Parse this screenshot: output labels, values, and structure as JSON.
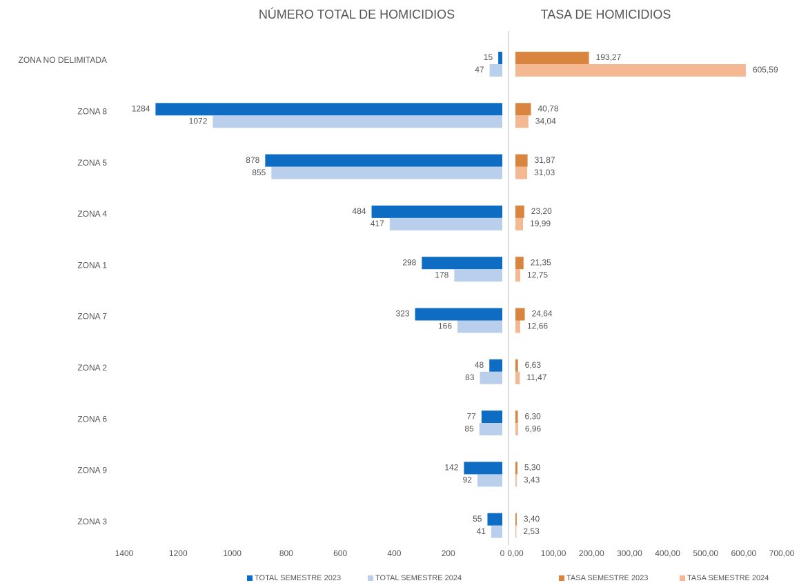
{
  "chart_data": [
    {
      "type": "bar",
      "orientation": "horizontal",
      "title": "NÚMERO TOTAL DE HOMICIDIOS",
      "categories": [
        "ZONA NO DELIMITADA",
        "ZONA 8",
        "ZONA 5",
        "ZONA 4",
        "ZONA 1",
        "ZONA 7",
        "ZONA 2",
        "ZONA 6",
        "ZONA 9",
        "ZONA 3"
      ],
      "series": [
        {
          "name": "TOTAL SEMESTRE 2023",
          "color": "#0e6cc3",
          "values": [
            15,
            1284,
            878,
            484,
            298,
            323,
            48,
            77,
            142,
            55
          ]
        },
        {
          "name": "TOTAL SEMESTRE 2024",
          "color": "#b9cfec",
          "values": [
            47,
            1072,
            855,
            417,
            178,
            166,
            83,
            85,
            92,
            41
          ]
        }
      ],
      "xlim": [
        1400,
        0
      ],
      "xticks": [
        1400,
        1200,
        1000,
        800,
        600,
        400,
        200,
        0
      ],
      "legend": "bottom"
    },
    {
      "type": "bar",
      "orientation": "horizontal",
      "title": "TASA DE HOMICIDIOS",
      "series": [
        {
          "name": "TASA SEMESTRE 2023",
          "color": "#d9843f",
          "values": [
            193.27,
            40.78,
            31.87,
            23.2,
            21.35,
            24.64,
            6.63,
            6.3,
            5.3,
            3.4
          ],
          "value_labels": [
            "193,27",
            "40,78",
            "31,87",
            "23,20",
            "21,35",
            "24,64",
            "6,63",
            "6,30",
            "5,30",
            "3,40"
          ]
        },
        {
          "name": "TASA SEMESTRE 2024",
          "color": "#f4b992",
          "values": [
            605.59,
            34.04,
            31.03,
            19.99,
            12.75,
            12.66,
            11.47,
            6.96,
            3.43,
            2.53
          ],
          "value_labels": [
            "605,59",
            "34,04",
            "31,03",
            "19,99",
            "12,75",
            "12,66",
            "11,47",
            "6,96",
            "3,43",
            "2,53"
          ]
        }
      ],
      "xlim": [
        0,
        700
      ],
      "xticks": [
        {
          "value": 0,
          "label": "0,00"
        },
        {
          "value": 100,
          "label": "100,00"
        },
        {
          "value": 200,
          "label": "200,00"
        },
        {
          "value": 300,
          "label": "300,00"
        },
        {
          "value": 400,
          "label": "400,00"
        },
        {
          "value": 500,
          "label": "500,00"
        },
        {
          "value": 600,
          "label": "600,00"
        },
        {
          "value": 700,
          "label": "700,00"
        }
      ],
      "legend": "bottom"
    }
  ]
}
